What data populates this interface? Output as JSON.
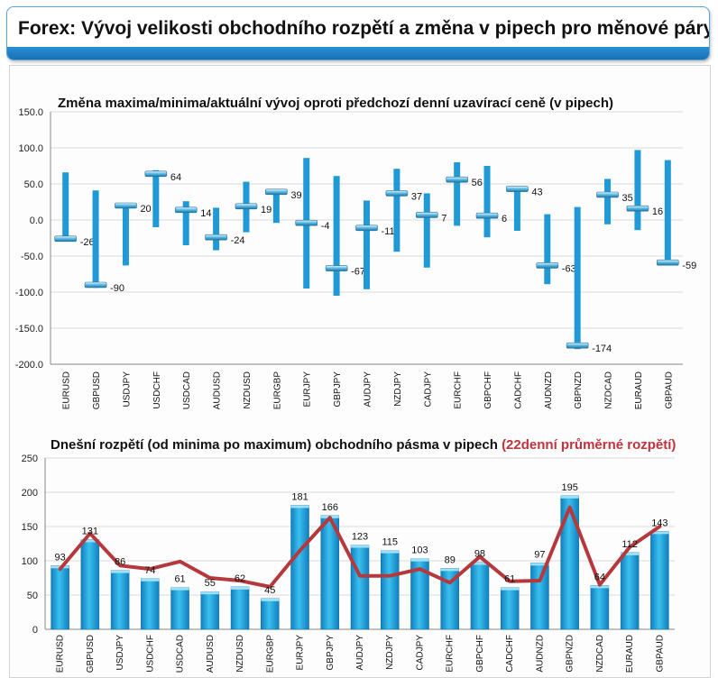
{
  "header": {
    "title": "Forex: Vývoj velikosti obchodního rozpětí a změna v pipech pro měnové páry"
  },
  "chart_data": [
    {
      "type": "range",
      "title": "Změna maxima/minima/aktuální vývoj oproti předchozí denní uzavírací ceně (v pipech)",
      "categories": [
        "EURUSD",
        "GBPUSD",
        "USDJPY",
        "USDCHF",
        "USDCAD",
        "AUDUSD",
        "NZDUSD",
        "EURGBP",
        "EURJPY",
        "GBPJPY",
        "AUDJPY",
        "NZDJPY",
        "CADJPY",
        "EURCHF",
        "GBPCHF",
        "CADCHF",
        "AUDNZD",
        "GBPNZD",
        "NZDCAD",
        "EURAUD",
        "GBPAUD"
      ],
      "series": [
        {
          "name": "max",
          "values": [
            66,
            41,
            22,
            69,
            26,
            17,
            53,
            42,
            86,
            61,
            27,
            71,
            37,
            80,
            75,
            45,
            8,
            18,
            57,
            97,
            83
          ]
        },
        {
          "name": "min",
          "values": [
            -28,
            -94,
            -63,
            -10,
            -35,
            -42,
            -17,
            -4,
            -95,
            -105,
            -96,
            -44,
            -66,
            -8,
            -24,
            -15,
            -89,
            -179,
            -6,
            -14,
            -62
          ]
        },
        {
          "name": "current",
          "values": [
            -26,
            -90,
            20,
            64,
            14,
            -24,
            19,
            39,
            -4,
            -67,
            -11,
            37,
            7,
            56,
            6,
            43,
            -63,
            -174,
            35,
            16,
            -59
          ]
        }
      ],
      "data_labels": [
        "-26",
        "-90",
        "20",
        "64",
        "14",
        "-24",
        "19",
        "39",
        "-4",
        "-67",
        "-11",
        "37",
        "7",
        "56",
        "6",
        "43",
        "-63",
        "-174",
        "35",
        "16",
        "-59"
      ],
      "ylim": [
        -200,
        150
      ],
      "yticks": [
        "150.0",
        "100.0",
        "50.0",
        "0.0",
        "-50.0",
        "-100.0",
        "-150.0",
        "-200.0"
      ],
      "grid": true,
      "colors": {
        "bar": "#1f9ad6",
        "marker": "#5bbbe6"
      }
    },
    {
      "type": "bar",
      "title": "Dnešní rozpětí (od minima po maximum) obchodního pásma v pipech",
      "title_highlight": "(22denní průměrné rozpětí)",
      "categories": [
        "EURUSD",
        "GBPUSD",
        "USDJPY",
        "USDCHF",
        "USDCAD",
        "AUDUSD",
        "NZDUSD",
        "EURGBP",
        "EURJPY",
        "GBPJPY",
        "AUDJPY",
        "NZDJPY",
        "CADJPY",
        "EURCHF",
        "GBPCHF",
        "CADCHF",
        "AUDNZD",
        "GBPNZD",
        "NZDCAD",
        "EURAUD",
        "GBPAUD"
      ],
      "series": [
        {
          "values": [
            93,
            131,
            86,
            74,
            61,
            55,
            62,
            45,
            181,
            166,
            123,
            115,
            103,
            89,
            98,
            61,
            97,
            195,
            64,
            112,
            143
          ]
        },
        {
          "type": "line",
          "values": [
            88,
            140,
            93,
            88,
            99,
            75,
            71,
            62,
            115,
            163,
            78,
            78,
            88,
            68,
            106,
            70,
            71,
            178,
            65,
            120,
            150
          ]
        }
      ],
      "data_labels": [
        "93",
        "131",
        "86",
        "74",
        "61",
        "55",
        "62",
        "45",
        "181",
        "166",
        "123",
        "115",
        "103",
        "89",
        "98",
        "61",
        "97",
        "195",
        "64",
        "112",
        "143"
      ],
      "ylim": [
        0,
        250
      ],
      "yticks": [
        "0",
        "50",
        "100",
        "150",
        "200",
        "250"
      ],
      "grid": true,
      "colors": {
        "bar": "#1fa3dc",
        "line": "#b5383c"
      }
    }
  ]
}
